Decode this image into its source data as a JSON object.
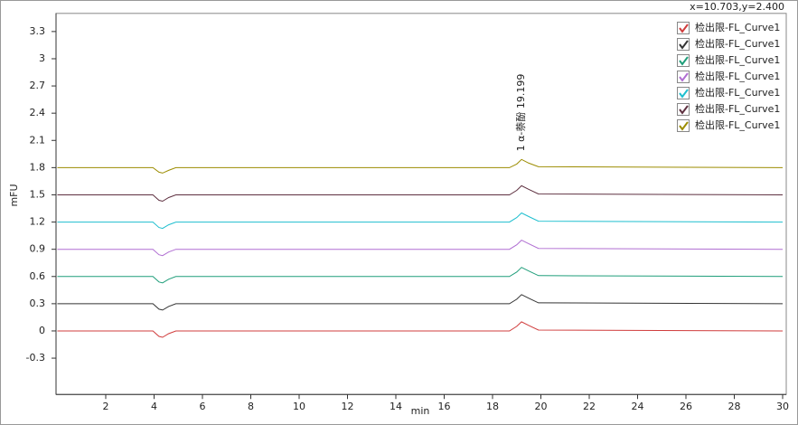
{
  "chart_data": {
    "type": "line",
    "readout": "x=10.703,y=2.400",
    "x_label": "min",
    "y_label": "mFU",
    "annotation": {
      "text": "1 α-萘酚 19.199",
      "x": 19.199,
      "y": 1.9
    },
    "xlim": [
      0,
      30
    ],
    "xticks": [
      2,
      4,
      6,
      8,
      10,
      12,
      14,
      16,
      18,
      20,
      22,
      24,
      26,
      28,
      30
    ],
    "ylim": [
      -0.7,
      3.5
    ],
    "yticks": [
      -0.3,
      0,
      0.3,
      0.6,
      0.9,
      1.2,
      1.5,
      1.8,
      2.1,
      2.4,
      2.7,
      3,
      3.3
    ],
    "x": [
      0,
      3.95,
      4.2,
      4.35,
      4.6,
      4.9,
      18.7,
      19.0,
      19.2,
      19.5,
      19.9,
      30
    ],
    "series": [
      {
        "name": "检出限-FL_Curve1",
        "color": "#d03c3c",
        "values": [
          0,
          0,
          -0.06,
          -0.07,
          -0.03,
          0,
          0,
          0.05,
          0.1,
          0.06,
          0.01,
          0
        ]
      },
      {
        "name": "检出限-FL_Curve1",
        "color": "#333333",
        "values": [
          0.3,
          0.3,
          0.24,
          0.23,
          0.27,
          0.3,
          0.3,
          0.35,
          0.4,
          0.36,
          0.31,
          0.3
        ]
      },
      {
        "name": "检出限-FL_Curve1",
        "color": "#1f9e7a",
        "values": [
          0.6,
          0.6,
          0.54,
          0.53,
          0.57,
          0.6,
          0.6,
          0.65,
          0.7,
          0.66,
          0.61,
          0.6
        ]
      },
      {
        "name": "检出限-FL_Curve1",
        "color": "#b06ed2",
        "values": [
          0.9,
          0.9,
          0.84,
          0.83,
          0.87,
          0.9,
          0.9,
          0.95,
          1.0,
          0.96,
          0.91,
          0.9
        ]
      },
      {
        "name": "检出限-FL_Curve1",
        "color": "#1fbfcf",
        "values": [
          1.2,
          1.2,
          1.14,
          1.13,
          1.17,
          1.2,
          1.2,
          1.25,
          1.3,
          1.26,
          1.21,
          1.2
        ]
      },
      {
        "name": "检出限-FL_Curve1",
        "color": "#5e3040",
        "values": [
          1.5,
          1.5,
          1.44,
          1.43,
          1.47,
          1.5,
          1.5,
          1.55,
          1.6,
          1.56,
          1.51,
          1.5
        ]
      },
      {
        "name": "检出限-FL_Curve1",
        "color": "#9c8c00",
        "values": [
          1.8,
          1.8,
          1.75,
          1.74,
          1.77,
          1.8,
          1.8,
          1.84,
          1.89,
          1.85,
          1.81,
          1.8
        ]
      }
    ]
  }
}
